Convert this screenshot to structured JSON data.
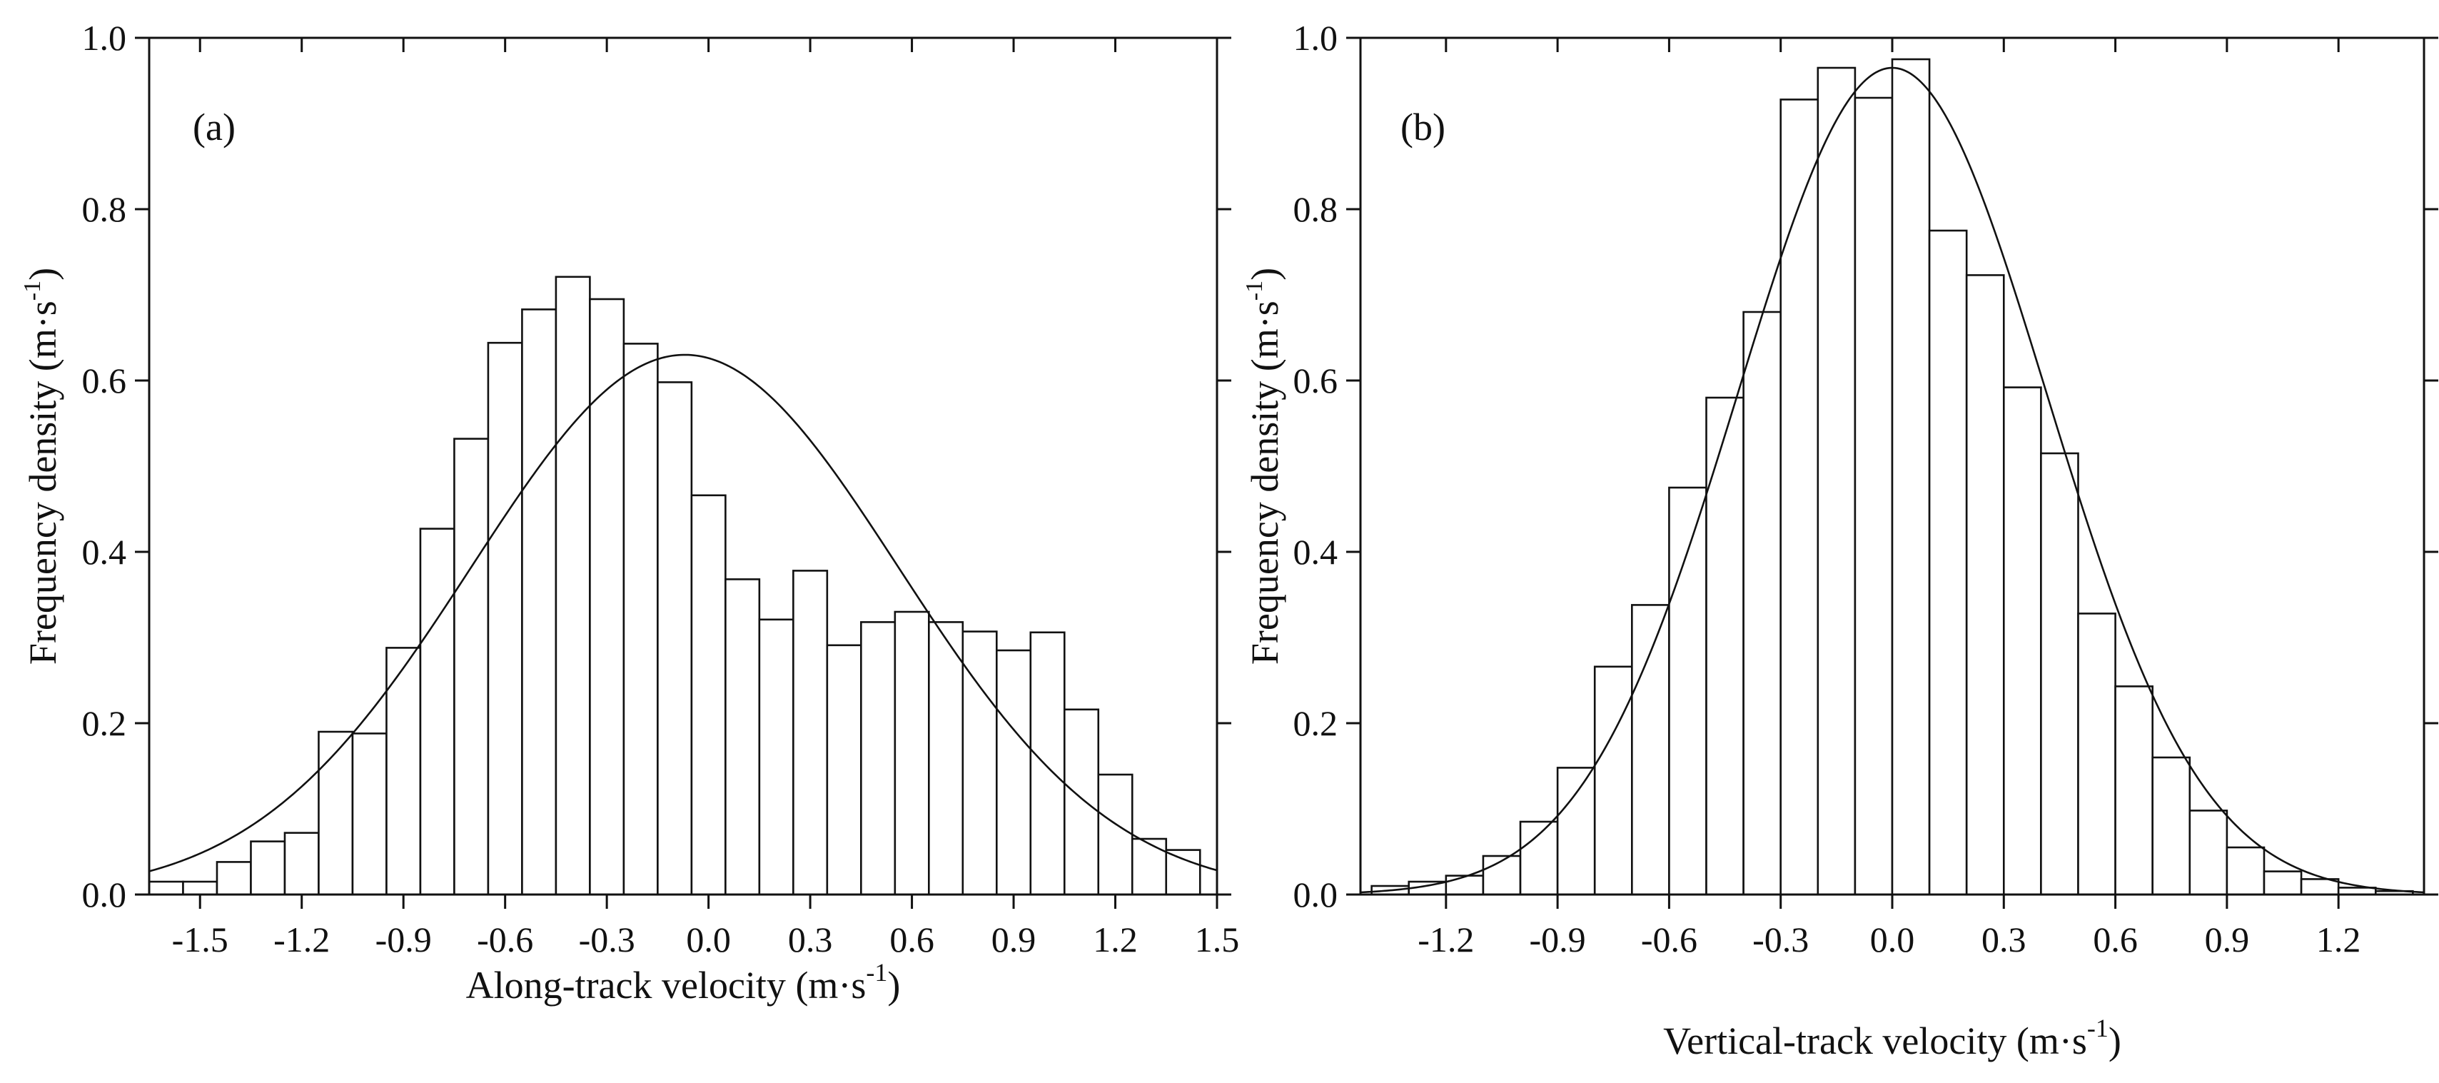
{
  "chart_data": [
    {
      "type": "bar",
      "panel_label": "(a)",
      "xlabel": "Along-track velocity",
      "xlabel_unit": {
        "open": "(m·s",
        "sup": "-1",
        "close": ")"
      },
      "ylabel": "Frequency density",
      "ylabel_unit": {
        "open": "(m·s",
        "sup": "-1",
        "close": ")"
      },
      "xlim": [
        -1.65,
        1.5
      ],
      "ylim": [
        0,
        1.0
      ],
      "xticks": [
        "-1.5",
        "-1.2",
        "-0.9",
        "-0.6",
        "-0.3",
        "0.0",
        "0.3",
        "0.6",
        "0.9",
        "1.2",
        "1.5"
      ],
      "yticks": [
        "0.0",
        "0.2",
        "0.4",
        "0.6",
        "0.8",
        "1.0"
      ],
      "bin_width": 0.1,
      "bin_centers": [
        -1.6,
        -1.5,
        -1.4,
        -1.3,
        -1.2,
        -1.1,
        -1.0,
        -0.9,
        -0.8,
        -0.7,
        -0.6,
        -0.5,
        -0.4,
        -0.3,
        -0.2,
        -0.1,
        0.0,
        0.1,
        0.2,
        0.3,
        0.4,
        0.5,
        0.6,
        0.7,
        0.8,
        0.9,
        1.0,
        1.1,
        1.2,
        1.3,
        1.4
      ],
      "values": [
        0.015,
        0.015,
        0.038,
        0.062,
        0.072,
        0.19,
        0.188,
        0.288,
        0.427,
        0.532,
        0.644,
        0.683,
        0.721,
        0.695,
        0.643,
        0.598,
        0.466,
        0.368,
        0.321,
        0.378,
        0.291,
        0.318,
        0.33,
        0.318,
        0.307,
        0.285,
        0.306,
        0.216,
        0.14,
        0.065,
        0.052
      ],
      "fit": {
        "type": "normal",
        "mean": -0.07,
        "sigma": 0.63,
        "peak": 0.63
      }
    },
    {
      "type": "bar",
      "panel_label": "(b)",
      "xlabel": "Vertical-track velocity",
      "xlabel_unit": {
        "open": "(m·s",
        "sup": "-1",
        "close": ")"
      },
      "ylabel": "Frequency density",
      "ylabel_unit": {
        "open": "(m·s",
        "sup": "-1",
        "close": ")"
      },
      "xlim": [
        -1.43,
        1.43
      ],
      "ylim": [
        0,
        1.0
      ],
      "xticks": [
        "-1.2",
        "-0.9",
        "-0.6",
        "-0.3",
        "0.0",
        "0.3",
        "0.6",
        "0.9",
        "1.2"
      ],
      "yticks": [
        "0.0",
        "0.2",
        "0.4",
        "0.6",
        "0.8",
        "1.0"
      ],
      "bin_width": 0.1,
      "bin_centers": [
        -1.35,
        -1.25,
        -1.15,
        -1.05,
        -0.95,
        -0.85,
        -0.75,
        -0.65,
        -0.55,
        -0.45,
        -0.35,
        -0.25,
        -0.15,
        -0.05,
        0.05,
        0.15,
        0.25,
        0.35,
        0.45,
        0.55,
        0.65,
        0.75,
        0.85,
        0.95,
        1.05,
        1.15,
        1.25,
        1.35
      ],
      "values": [
        0.01,
        0.015,
        0.022,
        0.045,
        0.085,
        0.148,
        0.266,
        0.338,
        0.475,
        0.58,
        0.68,
        0.928,
        0.965,
        0.93,
        0.975,
        0.775,
        0.723,
        0.592,
        0.515,
        0.328,
        0.243,
        0.16,
        0.098,
        0.055,
        0.027,
        0.018,
        0.008,
        0.004
      ],
      "fit": {
        "type": "normal",
        "mean": 0.0,
        "sigma": 0.415,
        "peak": 0.965
      }
    }
  ]
}
